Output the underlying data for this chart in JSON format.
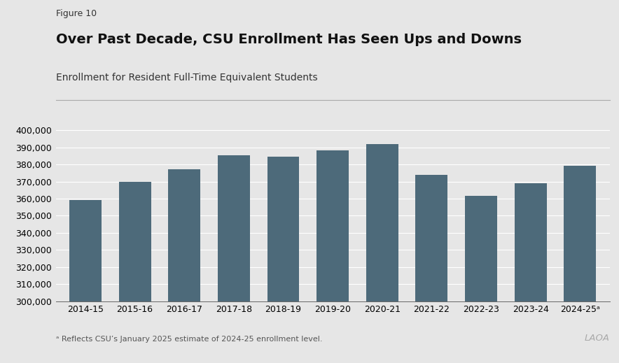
{
  "figure_label": "Figure 10",
  "title": "Over Past Decade, CSU Enrollment Has Seen Ups and Downs",
  "subtitle": "Enrollment for Resident Full-Time Equivalent Students",
  "categories": [
    "2014-15",
    "2015-16",
    "2016-17",
    "2017-18",
    "2018-19",
    "2019-20",
    "2020-21",
    "2021-22",
    "2022-23",
    "2023-24",
    "2024-25ᵃ"
  ],
  "values": [
    359000,
    370000,
    377000,
    385500,
    384500,
    388000,
    392000,
    374000,
    361500,
    369000,
    379000
  ],
  "bar_color": "#4d6a7a",
  "background_color": "#e6e6e6",
  "plot_bg_color": "#e6e6e6",
  "ylim": [
    300000,
    405000
  ],
  "yticks": [
    300000,
    310000,
    320000,
    330000,
    340000,
    350000,
    360000,
    370000,
    380000,
    390000,
    400000
  ],
  "footnote": "ᵃ Reflects CSU’s January 2025 estimate of 2024-25 enrollment level.",
  "laoa_text": "LAOA",
  "title_fontsize": 14,
  "subtitle_fontsize": 10,
  "figure_label_fontsize": 9,
  "tick_fontsize": 9,
  "footnote_fontsize": 8
}
